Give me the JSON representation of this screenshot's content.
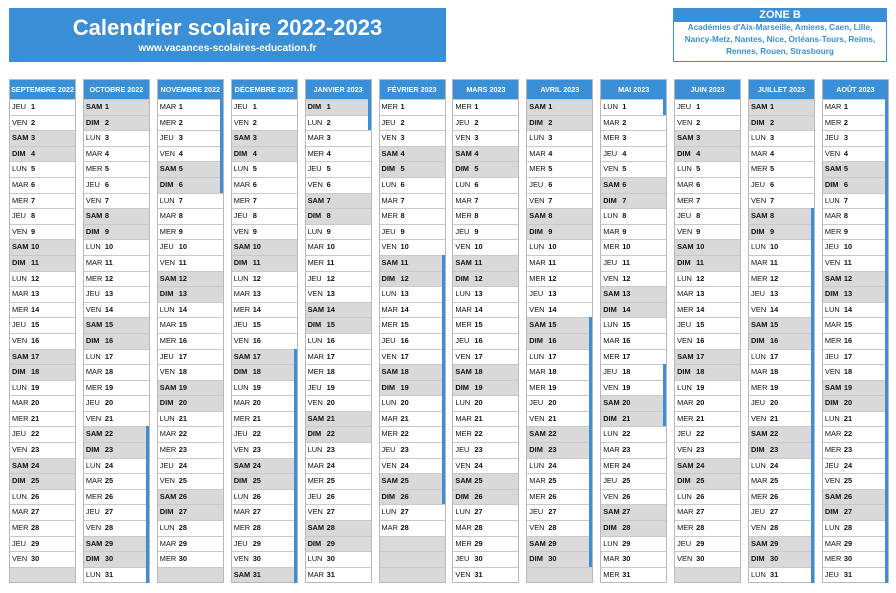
{
  "header": {
    "title": "Calendrier scolaire 2022-2023",
    "website": "www.vacances-scolaires-education.fr"
  },
  "zone": {
    "title": "ZONE B",
    "description": "Académies d'Aix-Marseille, Amiens, Caen, Lille, Nancy-Metz, Nantes, Nice, Orléans-Tours, Reims, Rennes, Rouen, Strasbourg"
  },
  "colors": {
    "accent": "#3a8fd6",
    "weekend": "#d9d9d9"
  },
  "months": [
    {
      "name": "SEPTEMBRE 2022",
      "start": 3,
      "days": 30,
      "vac": []
    },
    {
      "name": "OCTOBRE 2022",
      "start": 5,
      "days": 31,
      "vac": [
        [
          22,
          31
        ]
      ]
    },
    {
      "name": "NOVEMBRE 2022",
      "start": 1,
      "days": 30,
      "vac": [
        [
          1,
          6
        ]
      ]
    },
    {
      "name": "DÉCEMBRE 2022",
      "start": 3,
      "days": 31,
      "vac": [
        [
          17,
          31
        ]
      ]
    },
    {
      "name": "JANVIER 2023",
      "start": 6,
      "days": 31,
      "vac": [
        [
          1,
          2
        ]
      ]
    },
    {
      "name": "FÉVRIER 2023",
      "start": 2,
      "days": 28,
      "vac": [
        [
          11,
          26
        ]
      ]
    },
    {
      "name": "MARS 2023",
      "start": 2,
      "days": 31,
      "vac": []
    },
    {
      "name": "AVRIL 2023",
      "start": 5,
      "days": 30,
      "vac": [
        [
          15,
          30
        ]
      ]
    },
    {
      "name": "MAI 2023",
      "start": 0,
      "days": 31,
      "vac": [
        [
          1,
          1
        ],
        [
          18,
          21
        ]
      ]
    },
    {
      "name": "JUIN 2023",
      "start": 3,
      "days": 30,
      "vac": []
    },
    {
      "name": "JUILLET 2023",
      "start": 5,
      "days": 31,
      "vac": [
        [
          8,
          31
        ]
      ]
    },
    {
      "name": "AOÛT 2023",
      "start": 1,
      "days": 31,
      "vac": [
        [
          1,
          31
        ]
      ]
    }
  ],
  "day_names": [
    "LUN",
    "MAR",
    "MER",
    "JEU",
    "VEN",
    "SAM",
    "DIM"
  ]
}
